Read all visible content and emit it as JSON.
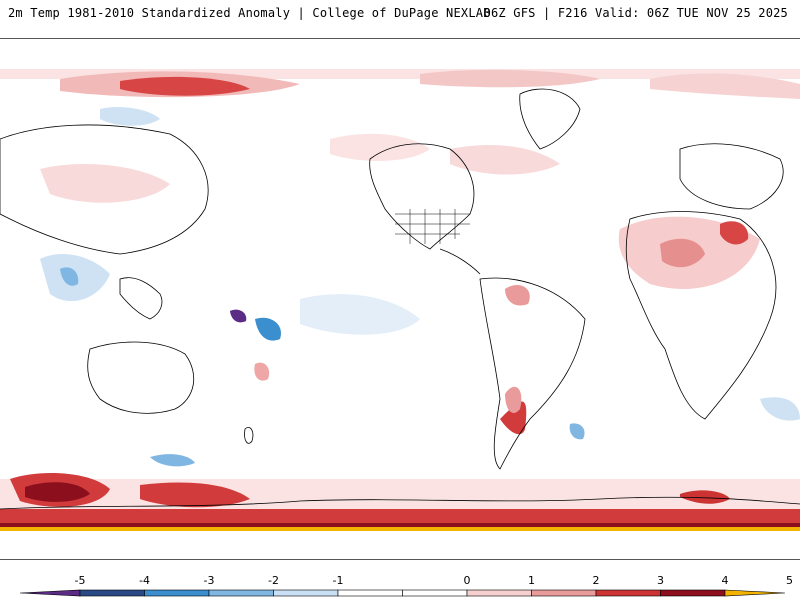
{
  "header": {
    "left": "2m Temp 1981-2010 Standardized Anomaly | College of DuPage NEXLAB",
    "right": "06Z GFS | F216 Valid: 06Z TUE NOV 25 2025"
  },
  "colorbar": {
    "labels": [
      "-5",
      "-4",
      "-3",
      "-2",
      "-1",
      "0",
      "1",
      "2",
      "3",
      "4",
      "5"
    ],
    "bins": [
      {
        "color": "#5b2b86"
      },
      {
        "color": "#2a4a86"
      },
      {
        "color": "#3b8fcf"
      },
      {
        "color": "#7fb6e2"
      },
      {
        "color": "#c9dff3"
      },
      {
        "color": "#ffffff"
      },
      {
        "color": "#ffffff"
      },
      {
        "color": "#f6cfcf"
      },
      {
        "color": "#e99a9a"
      },
      {
        "color": "#cc3333"
      },
      {
        "color": "#8b0f1c"
      },
      {
        "color": "#f2b400"
      }
    ]
  },
  "colors": {
    "warm_light": "#f8dada",
    "warm_mid": "#eea6a6",
    "warm_strong": "#d23b3b",
    "warm_extreme": "#8b0f1c",
    "cold_light": "#cfe2f4",
    "cold_mid": "#7fb6e2",
    "cold_strong": "#3b8fcf",
    "cold_extreme": "#5b2b86",
    "coast": "#000000",
    "yellow": "#f2b400"
  }
}
